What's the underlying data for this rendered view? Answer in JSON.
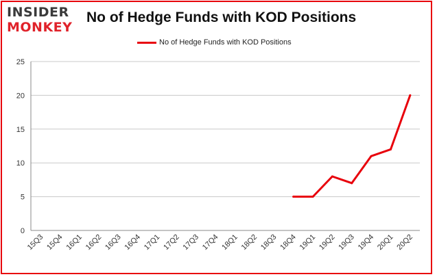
{
  "logo": {
    "line1": "INSIDER",
    "line2": "MONKEY"
  },
  "chart_data": {
    "type": "line",
    "title": "No of Hedge Funds with KOD Positions",
    "xlabel": "",
    "ylabel": "",
    "ylim": [
      0,
      25
    ],
    "yticks": [
      0,
      5,
      10,
      15,
      20,
      25
    ],
    "grid": true,
    "legend_placement": "top-center",
    "categories": [
      "15Q3",
      "15Q4",
      "16Q1",
      "16Q2",
      "16Q3",
      "16Q4",
      "17Q1",
      "17Q2",
      "17Q3",
      "17Q4",
      "18Q1",
      "18Q2",
      "18Q3",
      "18Q4",
      "19Q1",
      "19Q2",
      "19Q3",
      "19Q4",
      "20Q1",
      "20Q2"
    ],
    "series": [
      {
        "name": "No of Hedge Funds with KOD Positions",
        "color": "#e8000b",
        "values": [
          null,
          null,
          null,
          null,
          null,
          null,
          null,
          null,
          null,
          null,
          null,
          null,
          null,
          5,
          5,
          8,
          7,
          11,
          12,
          20
        ]
      }
    ]
  },
  "colors": {
    "frame": "#e8000b",
    "grid": "#c8c8c8",
    "axis": "#888888",
    "tick_text": "#333333"
  }
}
